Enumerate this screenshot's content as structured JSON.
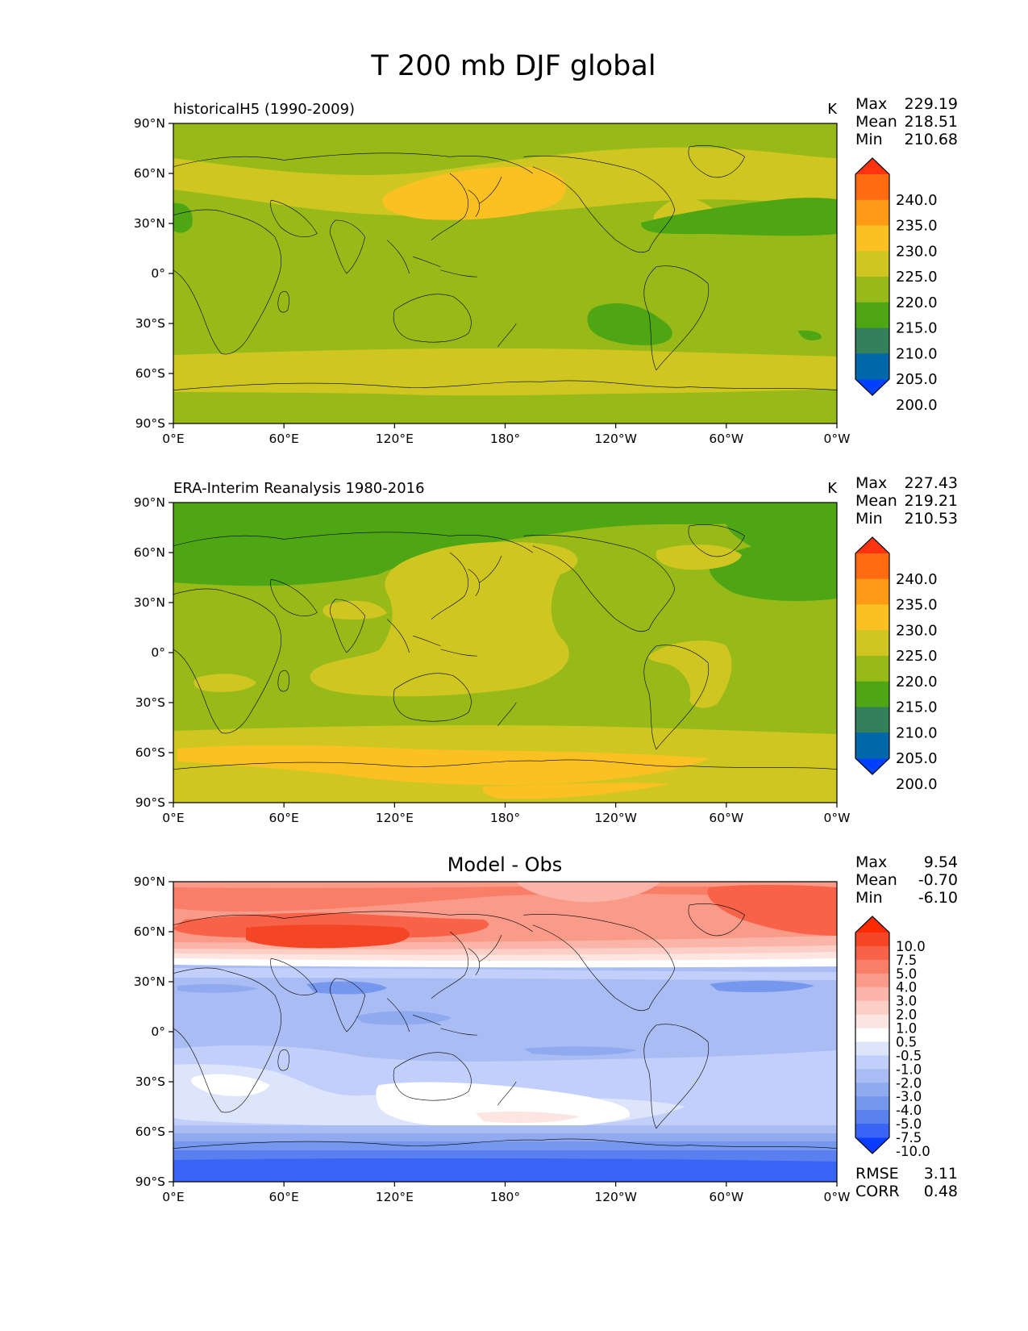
{
  "figure": {
    "title": "T 200 mb DJF global"
  },
  "axes": {
    "lat_ticks": [
      "90°N",
      "60°N",
      "30°N",
      "0°",
      "30°S",
      "60°S",
      "90°S"
    ],
    "lon_ticks": [
      "0°E",
      "60°E",
      "120°E",
      "180°",
      "120°W",
      "60°W",
      "0°W"
    ]
  },
  "panels": [
    {
      "id": "model",
      "title": "historicalH5 (1990-2009)",
      "units": "K",
      "stats": {
        "max_label": "Max",
        "max": "229.19",
        "mean_label": "Mean",
        "mean": "218.51",
        "min_label": "Min",
        "min": "210.68"
      },
      "colorbar": {
        "labels": [
          "240.0",
          "235.0",
          "230.0",
          "225.0",
          "220.0",
          "215.0",
          "210.0",
          "205.0",
          "200.0"
        ],
        "colors": [
          "#0040ff",
          "#0068a8",
          "#33805a",
          "#4ea615",
          "#97ba18",
          "#cfc622",
          "#fbc123",
          "#ff9a16",
          "#ff6b10",
          "#ff3310"
        ]
      }
    },
    {
      "id": "obs",
      "title": "ERA-Interim Reanalysis 1980-2016",
      "units": "K",
      "stats": {
        "max_label": "Max",
        "max": "227.43",
        "mean_label": "Mean",
        "mean": "219.21",
        "min_label": "Min",
        "min": "210.53"
      },
      "colorbar": {
        "labels": [
          "240.0",
          "235.0",
          "230.0",
          "225.0",
          "220.0",
          "215.0",
          "210.0",
          "205.0",
          "200.0"
        ],
        "colors": [
          "#0040ff",
          "#0068a8",
          "#33805a",
          "#4ea615",
          "#97ba18",
          "#cfc622",
          "#fbc123",
          "#ff9a16",
          "#ff6b10",
          "#ff3310"
        ]
      }
    },
    {
      "id": "diff",
      "title": "Model - Obs",
      "stats": {
        "max_label": "Max",
        "max": "9.54",
        "mean_label": "Mean",
        "mean": "-0.70",
        "min_label": "Min",
        "min": "-6.10"
      },
      "colorbar": {
        "labels": [
          "10.0",
          "7.5",
          "5.0",
          "4.0",
          "3.0",
          "2.0",
          "1.0",
          "0.5",
          "-0.5",
          "-1.0",
          "-2.0",
          "-3.0",
          "-4.0",
          "-5.0",
          "-7.5",
          "-10.0"
        ],
        "colors": [
          "#0a3cff",
          "#3a64f5",
          "#5a80f0",
          "#7597ee",
          "#90aaf0",
          "#a9bcf4",
          "#c2cffa",
          "#dde5fc",
          "#ffffff",
          "#fde6e2",
          "#fccfc6",
          "#fbb5a8",
          "#fa9a88",
          "#f97e68",
          "#f86248",
          "#f44624",
          "#ff2a00"
        ]
      },
      "extra_stats": {
        "rmse_label": "RMSE",
        "rmse": "3.11",
        "corr_label": "CORR",
        "corr": "0.48"
      }
    }
  ]
}
